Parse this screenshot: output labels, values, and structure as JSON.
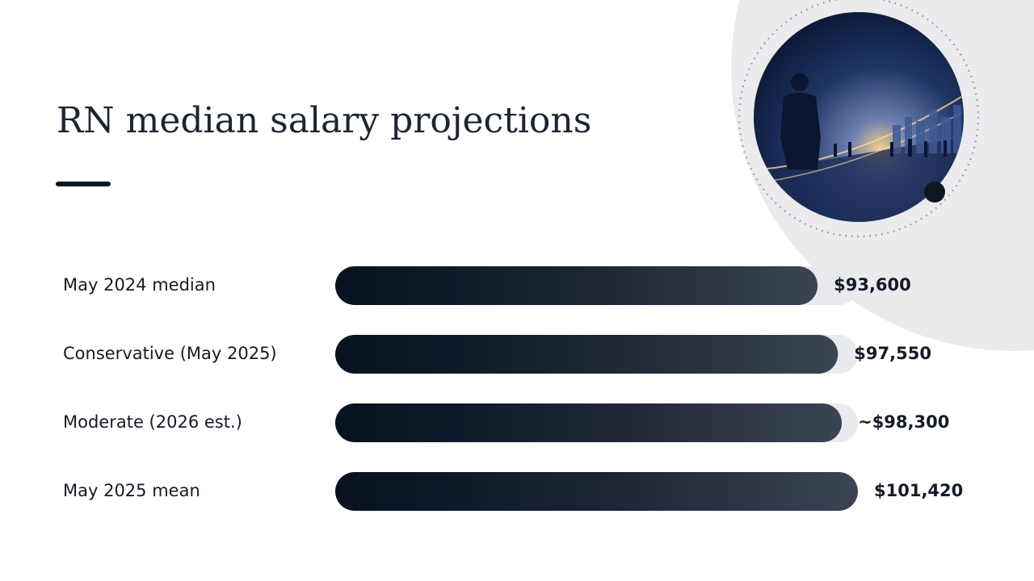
{
  "chart_data": {
    "type": "bar",
    "orientation": "horizontal",
    "title": "RN median salary projections",
    "categories": [
      "May 2024 median",
      "Conservative (May 2025)",
      "Moderate (2026 est.)",
      "May 2025 mean"
    ],
    "values": [
      93600,
      97550,
      98300,
      101420
    ],
    "value_labels": [
      "$93,600",
      "$97,550",
      "~$98,300",
      "$101,420"
    ],
    "color": "#1c2536"
  }
}
